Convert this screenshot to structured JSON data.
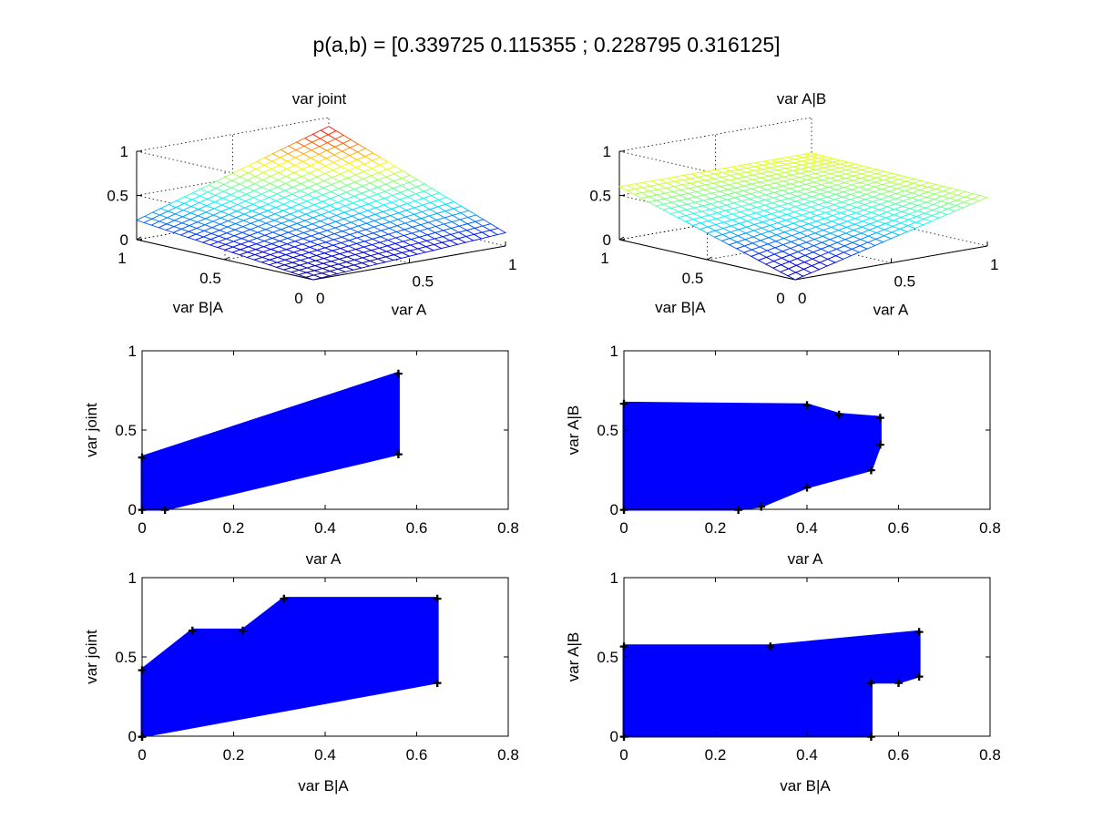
{
  "figure": {
    "title": "p(a,b) = [0.339725 0.115355 ; 0.228795 0.316125]"
  },
  "chart_data": [
    {
      "id": "surf_joint",
      "type": "surface",
      "title": "var joint",
      "xlabel": "var A",
      "ylabel": "var B|A",
      "zlabel": "",
      "xlim": [
        0,
        1
      ],
      "ylim": [
        0,
        1
      ],
      "zlim": [
        0,
        1
      ],
      "xticks": [
        "0",
        "0.5",
        "1"
      ],
      "yticks": [
        "0",
        "0.5",
        "1"
      ],
      "zticks": [
        "0",
        "0.5",
        "1"
      ],
      "grid": true,
      "colormap": "jet",
      "corner_values": {
        "z_at_a0_b0": 0.0,
        "z_at_a1_b0": 0.15,
        "z_at_a0_b1": 0.22,
        "z_at_a1_b1": 0.9
      }
    },
    {
      "id": "surf_condA",
      "type": "surface",
      "title": "var A|B",
      "xlabel": "var A",
      "ylabel": "var B|A",
      "zlabel": "",
      "xlim": [
        0,
        1
      ],
      "ylim": [
        0,
        1
      ],
      "zlim": [
        0,
        1
      ],
      "xticks": [
        "0",
        "0.5",
        "1"
      ],
      "yticks": [
        "0",
        "0.5",
        "1"
      ],
      "zticks": [
        "0",
        "0.5",
        "1"
      ],
      "grid": true,
      "colormap": "jet",
      "corner_values": {
        "z_at_a0_b0": 0.0,
        "z_at_a1_b0": 0.55,
        "z_at_a0_b1": 0.6,
        "z_at_a1_b1": 0.6
      }
    },
    {
      "id": "sc_joint_A",
      "type": "scatter",
      "title": "",
      "xlabel": "var A",
      "ylabel": "var joint",
      "xlim": [
        0,
        0.8
      ],
      "ylim": [
        0,
        1
      ],
      "xticks": [
        "0",
        "0.2",
        "0.4",
        "0.6",
        "0.8"
      ],
      "yticks": [
        "0",
        "0.5",
        "1"
      ],
      "color": "#0000ff",
      "region_outline": [
        [
          0,
          0
        ],
        [
          0,
          0.33
        ],
        [
          0.56,
          0.86
        ],
        [
          0.56,
          0.35
        ],
        [
          0.05,
          0.0
        ]
      ]
    },
    {
      "id": "sc_condA_A",
      "type": "scatter",
      "title": "",
      "xlabel": "var A",
      "ylabel": "var A|B",
      "xlim": [
        0,
        0.8
      ],
      "ylim": [
        0,
        1
      ],
      "xticks": [
        "0",
        "0.2",
        "0.4",
        "0.6",
        "0.8"
      ],
      "yticks": [
        "0",
        "0.5",
        "1"
      ],
      "color": "#0000ff",
      "region_outline": [
        [
          0,
          0
        ],
        [
          0,
          0.67
        ],
        [
          0.4,
          0.66
        ],
        [
          0.47,
          0.6
        ],
        [
          0.56,
          0.58
        ],
        [
          0.56,
          0.41
        ],
        [
          0.54,
          0.25
        ],
        [
          0.4,
          0.14
        ],
        [
          0.3,
          0.02
        ],
        [
          0.25,
          0.0
        ]
      ]
    },
    {
      "id": "sc_joint_BA",
      "type": "scatter",
      "title": "",
      "xlabel": "var B|A",
      "ylabel": "var joint",
      "xlim": [
        0,
        0.8
      ],
      "ylim": [
        0,
        1
      ],
      "xticks": [
        "0",
        "0.2",
        "0.4",
        "0.6",
        "0.8"
      ],
      "yticks": [
        "0",
        "0.5",
        "1"
      ],
      "color": "#0000ff",
      "region_outline": [
        [
          0,
          0
        ],
        [
          0,
          0.42
        ],
        [
          0.11,
          0.67
        ],
        [
          0.22,
          0.67
        ],
        [
          0.31,
          0.87
        ],
        [
          0.645,
          0.87
        ],
        [
          0.645,
          0.34
        ],
        [
          0.0,
          0.0
        ]
      ]
    },
    {
      "id": "sc_condA_BA",
      "type": "scatter",
      "title": "",
      "xlabel": "var B|A",
      "ylabel": "var A|B",
      "xlim": [
        0,
        0.8
      ],
      "ylim": [
        0,
        1
      ],
      "xticks": [
        "0",
        "0.2",
        "0.4",
        "0.6",
        "0.8"
      ],
      "yticks": [
        "0",
        "0.5",
        "1"
      ],
      "color": "#0000ff",
      "region_outline": [
        [
          0,
          0
        ],
        [
          0,
          0.57
        ],
        [
          0.32,
          0.57
        ],
        [
          0.645,
          0.66
        ],
        [
          0.645,
          0.38
        ],
        [
          0.6,
          0.34
        ],
        [
          0.54,
          0.34
        ],
        [
          0.54,
          0.0
        ]
      ]
    }
  ]
}
